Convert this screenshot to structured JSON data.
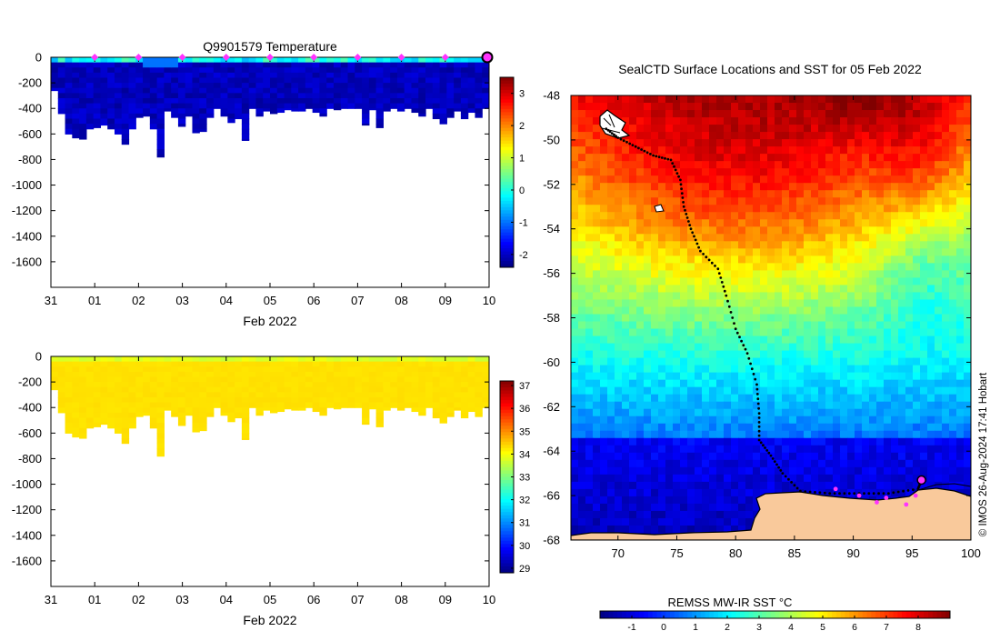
{
  "chart_data": [
    {
      "id": "temp",
      "type": "heatmap",
      "title": "Q9901579  Temperature",
      "xlabel": "Feb 2022",
      "xticks": [
        "31",
        "01",
        "02",
        "03",
        "04",
        "05",
        "06",
        "07",
        "08",
        "09",
        "10"
      ],
      "yticks": [
        0,
        -200,
        -400,
        -600,
        -800,
        -1000,
        -1200,
        -1400,
        -1600
      ],
      "ylim": [
        -1800,
        0
      ],
      "colorbar": {
        "ticks": [
          3,
          2,
          1,
          0,
          -1,
          -2
        ],
        "min": -2.4,
        "max": 3.5
      },
      "marker_days": [
        1,
        2,
        3,
        4,
        5,
        6,
        7,
        8,
        9
      ],
      "marker_color": "#ff33ff",
      "profile_depths": [
        -260,
        -440,
        -600,
        -630,
        -640,
        -560,
        -550,
        -530,
        -560,
        -600,
        -680,
        -560,
        -470,
        -460,
        -560,
        -780,
        -420,
        -470,
        -540,
        -460,
        -590,
        -580,
        -470,
        -400,
        -460,
        -510,
        -480,
        -650,
        -400,
        -460,
        -420,
        -440,
        -430,
        -410,
        -420,
        -420,
        -400,
        -430,
        -460,
        -400,
        -410,
        -400,
        -400,
        -400,
        -530,
        -410,
        -550,
        -420,
        -400,
        -420,
        -400,
        -430,
        -460,
        -400,
        -480,
        -520,
        -470,
        -420,
        -480,
        -430,
        -470,
        -400
      ]
    },
    {
      "id": "salt",
      "type": "heatmap",
      "title": "",
      "xlabel": "Feb 2022",
      "xticks": [
        "31",
        "01",
        "02",
        "03",
        "04",
        "05",
        "06",
        "07",
        "08",
        "09",
        "10"
      ],
      "yticks": [
        0,
        -200,
        -400,
        -600,
        -800,
        -1000,
        -1200,
        -1400,
        -1600
      ],
      "ylim": [
        -1800,
        0
      ],
      "colorbar": {
        "ticks": [
          37,
          36,
          35,
          34,
          33,
          32,
          31,
          30,
          29
        ],
        "min": 28.8,
        "max": 37.2
      }
    },
    {
      "id": "map",
      "type": "heatmap",
      "title": "SealCTD Surface Locations and SST for 05 Feb 2022",
      "xticks": [
        70,
        75,
        80,
        85,
        90,
        95,
        100
      ],
      "yticks": [
        -48,
        -50,
        -52,
        -54,
        -56,
        -58,
        -60,
        -62,
        -64,
        -66,
        -68
      ],
      "xlim": [
        66,
        100
      ],
      "ylim": [
        -68,
        -48
      ],
      "colorbar": {
        "label": "REMSS MW-IR SST °C",
        "ticks": [
          -1,
          0,
          1,
          2,
          3,
          4,
          5,
          6,
          7,
          8
        ],
        "min": -2,
        "max": 9
      },
      "track": [
        [
          69,
          -49.5
        ],
        [
          70,
          -49.9
        ],
        [
          71.5,
          -50.3
        ],
        [
          73,
          -50.7
        ],
        [
          74.5,
          -50.9
        ],
        [
          75.3,
          -51.8
        ],
        [
          75.6,
          -53
        ],
        [
          76.2,
          -54
        ],
        [
          77,
          -55
        ],
        [
          78.5,
          -55.8
        ],
        [
          79.2,
          -57
        ],
        [
          80,
          -58.5
        ],
        [
          81,
          -59.6
        ],
        [
          81.8,
          -61
        ],
        [
          82,
          -62.3
        ],
        [
          82,
          -63.5
        ],
        [
          83,
          -64.2
        ],
        [
          84,
          -65
        ],
        [
          85.5,
          -65.8
        ],
        [
          88,
          -65.9
        ],
        [
          90.5,
          -65.9
        ],
        [
          93,
          -65.9
        ],
        [
          95.5,
          -65.7
        ],
        [
          95.8,
          -65.3
        ]
      ],
      "magenta_points": [
        [
          88.5,
          -65.7
        ],
        [
          90.5,
          -66
        ],
        [
          92,
          -66.3
        ],
        [
          92.8,
          -66.1
        ],
        [
          94.5,
          -66.4
        ],
        [
          95.3,
          -66
        ]
      ],
      "latest_point": [
        95.8,
        -65.3
      ]
    }
  ],
  "watermark": "© IMOS 26-Aug-2024 17:41 Hobart",
  "colors": {
    "track": "#000000",
    "marker": "#ff33ff",
    "land": "#f9c99b"
  }
}
